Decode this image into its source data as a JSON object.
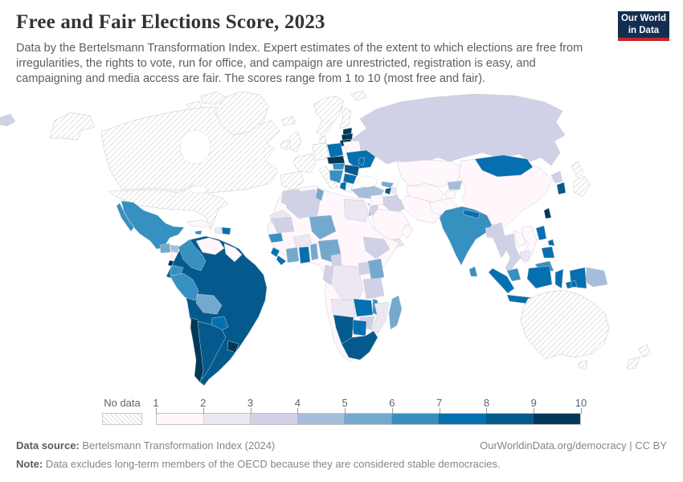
{
  "header": {
    "title": "Free and Fair Elections Score, 2023",
    "subtitle": "Data by the Bertelsmann Transformation Index. Expert estimates of the extent to which elections are free from irregularities, the rights to vote, run for office, and campaign are unrestricted, registration is easy, and campaigning and media access are fair. The scores range from 1 to 10 (most free and fair).",
    "logo": {
      "line1": "Our World",
      "line2": "in Data",
      "bg": "#142e52",
      "accent": "#c0272d"
    }
  },
  "legend": {
    "no_data_label": "No data",
    "ticks": [
      "1",
      "2",
      "3",
      "4",
      "5",
      "6",
      "7",
      "8",
      "9",
      "10"
    ],
    "bin_colors": [
      "#fff7fb",
      "#ece7f2",
      "#d0d1e6",
      "#a6bddb",
      "#74a9cf",
      "#3690c0",
      "#0570b0",
      "#045a8d",
      "#023858"
    ],
    "bin_ranges": [
      "1-2",
      "2-3",
      "3-4",
      "4-5",
      "5-6",
      "6-7",
      "7-8",
      "8-9",
      "9-10"
    ]
  },
  "footer": {
    "source_label": "Data source:",
    "source_text": " Bertelsmann Transformation Index (2024)",
    "link_text": "OurWorldinData.org/democracy | CC BY",
    "note_label": "Note:",
    "note_text": " Data excludes long-term members of the OECD because they are considered stable democracies."
  },
  "chart_data": {
    "type": "choropleth_map",
    "title": "Free and Fair Elections Score, 2023",
    "scale": {
      "min": 1,
      "max": 10,
      "bins": 9,
      "palette": "light pink-purple to dark navy blue (PuBu)"
    },
    "no_data": [
      "Canada",
      "United States",
      "Greenland",
      "Iceland",
      "United Kingdom",
      "Ireland",
      "France",
      "Spain",
      "Portugal",
      "Germany",
      "Netherlands",
      "Belgium",
      "Luxembourg",
      "Switzerland",
      "Austria",
      "Italy",
      "Denmark",
      "Norway",
      "Sweden",
      "Finland",
      "Greece",
      "Japan",
      "Australia",
      "New Zealand"
    ],
    "countries": {
      "Mexico": 6,
      "Guatemala": 5,
      "Honduras": 4,
      "Nicaragua": 1,
      "Costa Rica": 9,
      "Panama": 7,
      "Cuba": 1,
      "Haiti": 2,
      "Dominican Republic": 7,
      "Jamaica": 6,
      "Colombia": 6,
      "Venezuela": 1,
      "Guyana": 1,
      "Ecuador": 6,
      "Peru": 6,
      "Bolivia": 5,
      "Brazil": 8,
      "Paraguay": 7,
      "Chile": 9,
      "Argentina": 8,
      "Uruguay": 9,
      "Estonia": 9,
      "Latvia": 9,
      "Lithuania": 9,
      "Poland": 7,
      "Czechia": 9,
      "Slovakia": 8,
      "Hungary": 6,
      "Romania": 8,
      "Bulgaria": 7,
      "Moldova": 7,
      "Ukraine": 7,
      "Belarus": 1,
      "Serbia": 6,
      "Albania": 7,
      "Russia": 3,
      "Turkey": 4,
      "Georgia": 5,
      "Armenia": 8,
      "Azerbaijan": 2,
      "Syria": 1,
      "Iraq": 3,
      "Iran": 1,
      "Saudi Arabia": 1,
      "Yemen": 2,
      "Oman": 1,
      "Jordan": 3,
      "Israel": 4,
      "Lebanon": 4,
      "Egypt": 2,
      "Libya": 1,
      "Tunisia": 5,
      "Algeria": 3,
      "Morocco": 3,
      "Western Sahara": 2,
      "Mauritania": 3,
      "Mali": 1,
      "Niger": 5,
      "Chad": 1,
      "Sudan": 1,
      "South Sudan": 1,
      "Eritrea": 1,
      "Ethiopia": 3,
      "Somalia": 1,
      "Senegal": 6,
      "Guinea": 1,
      "Sierra Leone": 7,
      "Liberia": 7,
      "Ivory Coast": 5,
      "Ghana": 7,
      "Togo": 4,
      "Benin": 5,
      "Burkina Faso": 2,
      "Nigeria": 5,
      "Cameroon": 3,
      "Central African Republic": 1,
      "DR Congo": 2,
      "Republic of the Congo": 3,
      "Gabon": 3,
      "Uganda": 3,
      "Kenya": 5,
      "Tanzania": 3,
      "Angola": 2,
      "Zambia": 7,
      "Malawi": 6,
      "Mozambique": 2,
      "Zimbabwe": 3,
      "Botswana": 7,
      "Namibia": 8,
      "South Africa": 8,
      "Lesotho": 7,
      "Madagascar": 5,
      "Kazakhstan": 1,
      "Uzbekistan": 1,
      "Turkmenistan": 1,
      "Kyrgyzstan": 4,
      "Tajikistan": 1,
      "Afghanistan": 1,
      "Pakistan": 4,
      "India": 6,
      "Nepal": 7,
      "Bangladesh": 3,
      "Sri Lanka": 6,
      "Myanmar": 3,
      "Thailand": 3,
      "Laos": 1,
      "Vietnam": 1,
      "Cambodia": 2,
      "Malaysia": 6,
      "Indonesia": 7,
      "Philippines": 7,
      "Papua New Guinea": 4,
      "China": 1,
      "Mongolia": 7,
      "North Korea": 3,
      "South Korea": 8,
      "Taiwan": 9
    }
  }
}
